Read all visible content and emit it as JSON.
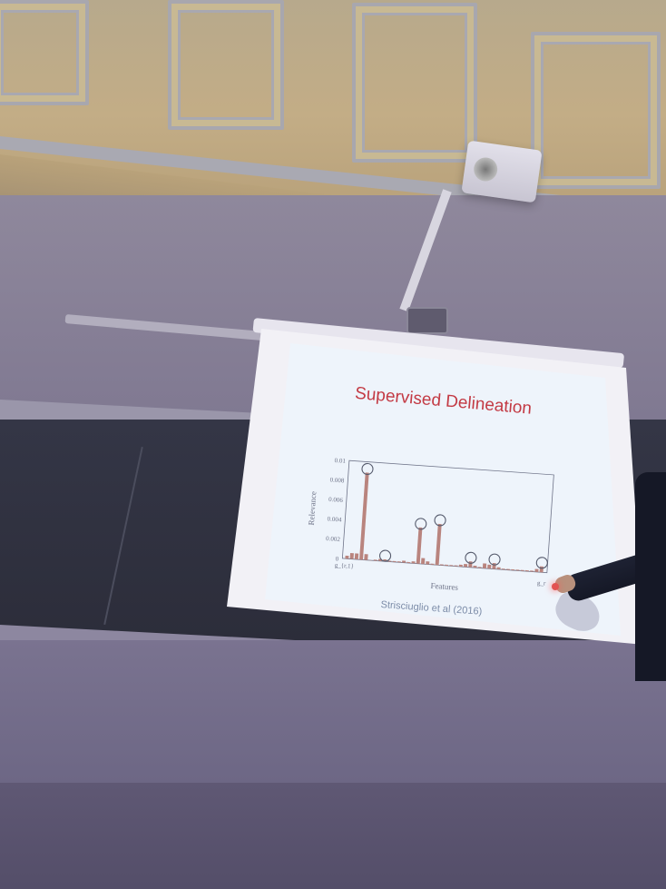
{
  "slide": {
    "title": "Supervised Delineation",
    "credit": "Strisciuglio et al (2016)"
  },
  "chart_data": {
    "type": "bar",
    "title": "",
    "xlabel": "Features",
    "ylabel": "Relevance",
    "ylim": [
      0,
      0.01
    ],
    "yticks": [
      "0",
      "0.002",
      "0.004",
      "0.006",
      "0.008",
      "0.01"
    ],
    "xtick_left": "g_{r,1}",
    "xtick_right": "g_r",
    "values": [
      0.0003,
      0.0006,
      0.0006,
      0.0089,
      0.0006,
      0.0,
      0.0001,
      0.0002,
      0.0002,
      0.0001,
      0.0001,
      0.0001,
      0.0002,
      0.0001,
      0.0002,
      0.0037,
      0.0006,
      0.0003,
      0.0001,
      0.0042,
      0.0001,
      0.0001,
      0.0001,
      0.0001,
      0.0002,
      0.0003,
      0.0006,
      0.0002,
      0.0001,
      0.0005,
      0.0004,
      0.0006,
      0.0002,
      0.0001,
      0.0001,
      0.0001,
      0.0001,
      0.0001,
      0.0001,
      0.0001,
      0.0003,
      0.0006
    ],
    "highlighted_indices": [
      3,
      8,
      15,
      19,
      26,
      31,
      41
    ],
    "colors": {
      "bar": "#b9847e",
      "circle": "#555a6c",
      "axis": "#6d7287"
    }
  },
  "scene": {
    "colors": {
      "screen": "#eef4fb",
      "chalkboard": "#2f3040",
      "ceiling": "#c1ab84"
    }
  }
}
